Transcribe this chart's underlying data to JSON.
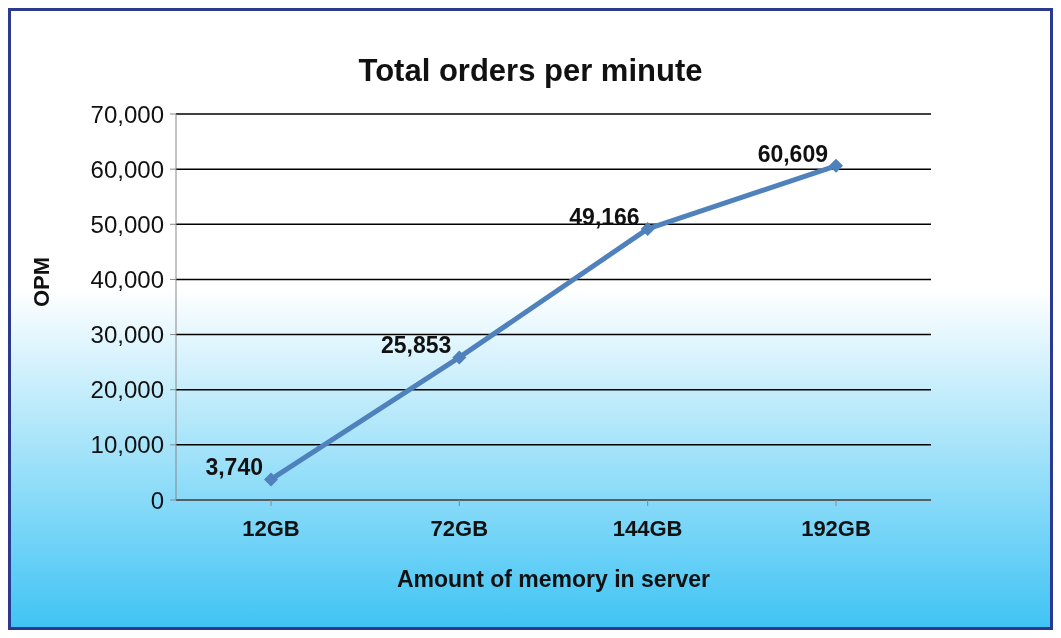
{
  "chart_data": {
    "type": "line",
    "title": "Total orders per minute",
    "xlabel": "Amount of memory in server",
    "ylabel": "OPM",
    "categories": [
      "12GB",
      "72GB",
      "144GB",
      "192GB"
    ],
    "series": [
      {
        "color": "#4f81bd",
        "values": [
          3740,
          25853,
          49166,
          60609
        ],
        "value_labels": [
          "3,740",
          "25,853",
          "49,166",
          "60,609"
        ]
      }
    ],
    "ylim": [
      0,
      70000
    ],
    "yticks": [
      0,
      {
        "value": 10000,
        "label": "10,000"
      },
      {
        "value": 20000,
        "label": "20,000"
      },
      {
        "value": 30000,
        "label": "30,000"
      },
      {
        "value": 40000,
        "label": "40,000"
      },
      {
        "value": 50000,
        "label": "50,000"
      },
      {
        "value": 60000,
        "label": "60,000"
      },
      {
        "value": 70000,
        "label": "70,000"
      }
    ],
    "grid": "y",
    "legend": false,
    "marker": "diamond",
    "line_style": "solid"
  }
}
